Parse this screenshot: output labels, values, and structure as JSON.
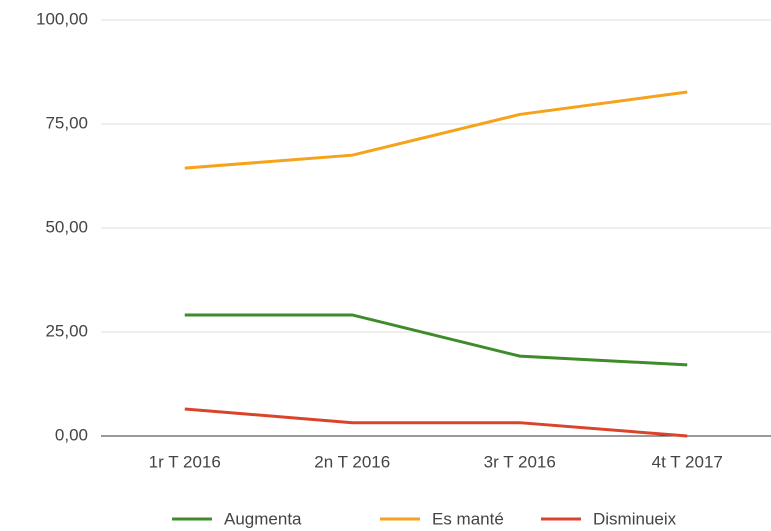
{
  "chart_data": {
    "type": "line",
    "categories": [
      "1r T 2016",
      "2n T 2016",
      "3r T 2016",
      "4t T 2017"
    ],
    "series": [
      {
        "name": "Augmenta",
        "color": "#3d8b2a",
        "values": [
          29.1,
          29.1,
          19.2,
          17.1
        ]
      },
      {
        "name": "Es manté",
        "color": "#f5a31a",
        "values": [
          64.4,
          67.5,
          77.3,
          82.7
        ]
      },
      {
        "name": "Disminueix",
        "color": "#d9442b",
        "values": [
          6.5,
          3.2,
          3.2,
          0
        ]
      }
    ],
    "ylim": [
      0,
      100
    ],
    "yticks": [
      {
        "value": 0,
        "label": "0,00"
      },
      {
        "value": 25,
        "label": "25,00"
      },
      {
        "value": 50,
        "label": "50,00"
      },
      {
        "value": 75,
        "label": "75,00"
      },
      {
        "value": 100,
        "label": "100,00"
      }
    ],
    "grid": true,
    "legend": "bottom"
  }
}
